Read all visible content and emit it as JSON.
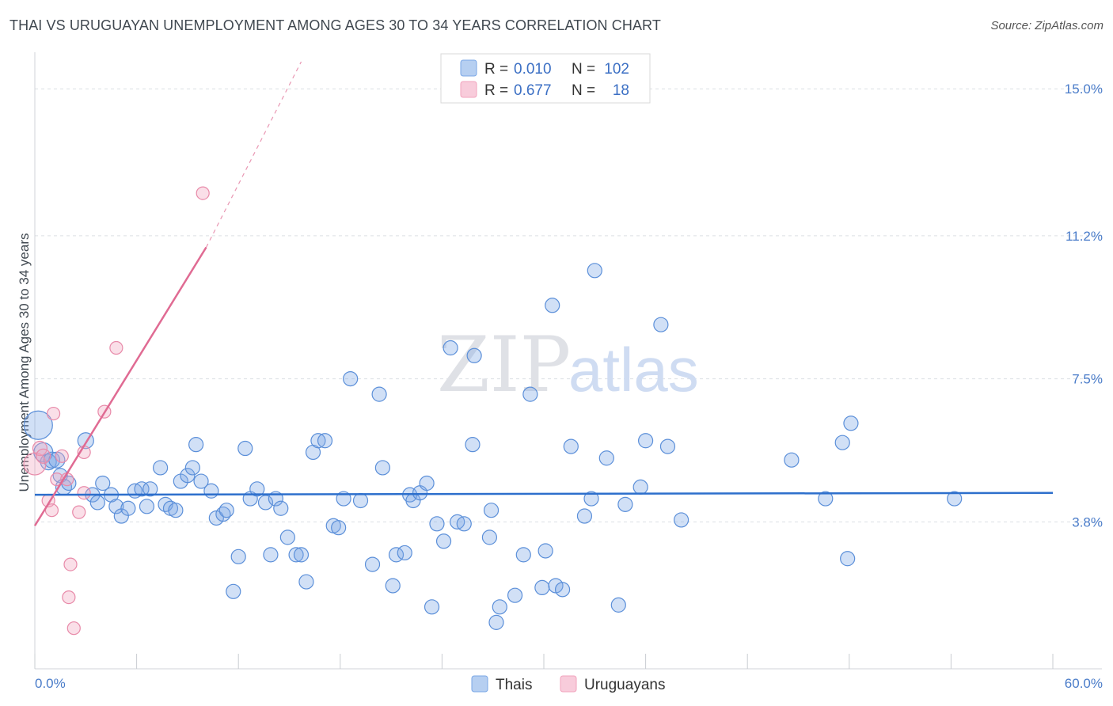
{
  "title": "THAI VS URUGUAYAN UNEMPLOYMENT AMONG AGES 30 TO 34 YEARS CORRELATION CHART",
  "source": "Source: ZipAtlas.com",
  "watermark": {
    "zip": "ZIP",
    "atlas": "atlas"
  },
  "colors": {
    "thai": "#7aa7e6",
    "thai_line": "#2d6fcc",
    "uru": "#f2a3bd",
    "uru_line": "#e06b93",
    "grid": "#dcdfe4",
    "axis_label": "#4a7cc9"
  },
  "legend": {
    "rows": [
      {
        "r_label": "R = ",
        "r_value": "0.010",
        "n_label": "N = ",
        "n_value": "102"
      },
      {
        "r_label": "R = ",
        "r_value": "0.677",
        "n_label": "N = ",
        "n_value": "18"
      }
    ]
  },
  "chart_data": {
    "type": "scatter",
    "title": "THAI VS URUGUAYAN UNEMPLOYMENT AMONG AGES 30 TO 34 YEARS CORRELATION CHART",
    "xlabel": "",
    "ylabel": "Unemployment Among Ages 30 to 34 years",
    "xlim": [
      0,
      60
    ],
    "ylim": [
      0,
      15.7
    ],
    "x_tick_labels": [
      "0.0%",
      "60.0%"
    ],
    "y_ticks": [
      3.8,
      7.5,
      11.2,
      15.0
    ],
    "y_tick_labels": [
      "3.8%",
      "7.5%",
      "11.2%",
      "15.0%"
    ],
    "grid": true,
    "legend_position": "top-center",
    "series": [
      {
        "name": "Thais",
        "color": "#7aa7e6",
        "trend": {
          "x": [
            0,
            60
          ],
          "y": [
            4.5,
            4.55
          ]
        },
        "points": [
          [
            0.2,
            6.3,
            18
          ],
          [
            0.5,
            5.6,
            12
          ],
          [
            0.8,
            5.35,
            10
          ],
          [
            1.0,
            5.4,
            10
          ],
          [
            1.3,
            5.4,
            10
          ],
          [
            1.5,
            5.0,
            9
          ],
          [
            1.7,
            4.7,
            10
          ],
          [
            2.0,
            4.8,
            9
          ],
          [
            3.0,
            5.9,
            10
          ],
          [
            3.4,
            4.5,
            9
          ],
          [
            3.7,
            4.3,
            9
          ],
          [
            4.0,
            4.8,
            9
          ],
          [
            4.5,
            4.5,
            9
          ],
          [
            4.8,
            4.2,
            9
          ],
          [
            5.1,
            3.95,
            9
          ],
          [
            5.5,
            4.15,
            9
          ],
          [
            5.9,
            4.6,
            9
          ],
          [
            6.3,
            4.65,
            9
          ],
          [
            6.6,
            4.2,
            9
          ],
          [
            6.8,
            4.65,
            9
          ],
          [
            7.4,
            5.2,
            9
          ],
          [
            7.7,
            4.25,
            9
          ],
          [
            8.0,
            4.15,
            9
          ],
          [
            8.3,
            4.1,
            9
          ],
          [
            8.6,
            4.85,
            9
          ],
          [
            9.0,
            5.0,
            9
          ],
          [
            9.3,
            5.2,
            9
          ],
          [
            9.5,
            5.8,
            9
          ],
          [
            9.8,
            4.85,
            9
          ],
          [
            10.4,
            4.6,
            9
          ],
          [
            10.7,
            3.9,
            9
          ],
          [
            11.1,
            4.0,
            9
          ],
          [
            11.3,
            4.1,
            9
          ],
          [
            11.7,
            2.0,
            9
          ],
          [
            12.0,
            2.9,
            9
          ],
          [
            12.4,
            5.7,
            9
          ],
          [
            12.7,
            4.4,
            9
          ],
          [
            13.1,
            4.65,
            9
          ],
          [
            13.6,
            4.3,
            9
          ],
          [
            13.9,
            2.95,
            9
          ],
          [
            14.2,
            4.4,
            9
          ],
          [
            14.5,
            4.15,
            9
          ],
          [
            14.9,
            3.4,
            9
          ],
          [
            15.4,
            2.95,
            9
          ],
          [
            15.7,
            2.95,
            9
          ],
          [
            16.0,
            2.25,
            9
          ],
          [
            16.4,
            5.6,
            9
          ],
          [
            16.7,
            5.9,
            9
          ],
          [
            17.1,
            5.9,
            9
          ],
          [
            17.6,
            3.7,
            9
          ],
          [
            17.9,
            3.65,
            9
          ],
          [
            18.2,
            4.4,
            9
          ],
          [
            18.6,
            7.5,
            9
          ],
          [
            19.2,
            4.35,
            9
          ],
          [
            19.9,
            2.7,
            9
          ],
          [
            20.3,
            7.1,
            9
          ],
          [
            20.5,
            5.2,
            9
          ],
          [
            21.1,
            2.15,
            9
          ],
          [
            21.3,
            2.95,
            9
          ],
          [
            21.8,
            3.0,
            9
          ],
          [
            22.1,
            4.5,
            9
          ],
          [
            22.3,
            4.35,
            9
          ],
          [
            22.7,
            4.55,
            9
          ],
          [
            23.1,
            4.8,
            9
          ],
          [
            23.4,
            1.6,
            9
          ],
          [
            23.7,
            3.75,
            9
          ],
          [
            24.1,
            3.3,
            9
          ],
          [
            24.5,
            8.3,
            9
          ],
          [
            24.9,
            3.8,
            9
          ],
          [
            25.3,
            3.75,
            9
          ],
          [
            25.8,
            5.8,
            9
          ],
          [
            25.9,
            8.1,
            9
          ],
          [
            26.9,
            4.1,
            9
          ],
          [
            26.8,
            3.4,
            9
          ],
          [
            27.2,
            1.2,
            9
          ],
          [
            27.4,
            1.6,
            9
          ],
          [
            28.3,
            1.9,
            9
          ],
          [
            28.8,
            2.95,
            9
          ],
          [
            29.2,
            7.1,
            9
          ],
          [
            29.9,
            2.1,
            9
          ],
          [
            30.1,
            3.05,
            9
          ],
          [
            30.7,
            2.15,
            9
          ],
          [
            30.5,
            9.4,
            9
          ],
          [
            31.1,
            2.05,
            9
          ],
          [
            31.6,
            5.75,
            9
          ],
          [
            32.4,
            3.95,
            9
          ],
          [
            32.8,
            4.4,
            9
          ],
          [
            33.0,
            10.3,
            9
          ],
          [
            33.7,
            5.45,
            9
          ],
          [
            34.4,
            1.65,
            9
          ],
          [
            34.8,
            4.25,
            9
          ],
          [
            35.7,
            4.7,
            9
          ],
          [
            36.0,
            5.9,
            9
          ],
          [
            36.9,
            8.9,
            9
          ],
          [
            37.3,
            5.75,
            9
          ],
          [
            38.1,
            3.85,
            9
          ],
          [
            44.6,
            5.4,
            9
          ],
          [
            46.6,
            4.4,
            9
          ],
          [
            47.6,
            5.85,
            9
          ],
          [
            47.9,
            2.85,
            9
          ],
          [
            48.1,
            6.35,
            9
          ],
          [
            54.2,
            4.4,
            9
          ]
        ]
      },
      {
        "name": "Uruguayans",
        "color": "#f2a3bd",
        "trend": {
          "x": [
            0,
            10.1
          ],
          "y": [
            3.7,
            10.9
          ]
        },
        "trend_ext": {
          "x": [
            10.1,
            15.7
          ],
          "y": [
            10.9,
            15.7
          ]
        },
        "points": [
          [
            0.0,
            5.3,
            14
          ],
          [
            0.3,
            5.7,
            9
          ],
          [
            0.5,
            5.5,
            9
          ],
          [
            0.8,
            4.35,
            8
          ],
          [
            1.0,
            4.1,
            8
          ],
          [
            1.1,
            6.6,
            8
          ],
          [
            1.3,
            4.9,
            8
          ],
          [
            1.6,
            5.5,
            8
          ],
          [
            1.9,
            4.9,
            8
          ],
          [
            2.0,
            1.85,
            8
          ],
          [
            2.1,
            2.7,
            8
          ],
          [
            2.3,
            1.05,
            8
          ],
          [
            2.6,
            4.05,
            8
          ],
          [
            2.9,
            4.55,
            8
          ],
          [
            4.1,
            6.65,
            8
          ],
          [
            4.8,
            8.3,
            8
          ],
          [
            9.9,
            12.3,
            8
          ],
          [
            2.9,
            5.6,
            8
          ]
        ]
      }
    ]
  },
  "bottom_legend": {
    "items": [
      "Thais",
      "Uruguayans"
    ]
  }
}
